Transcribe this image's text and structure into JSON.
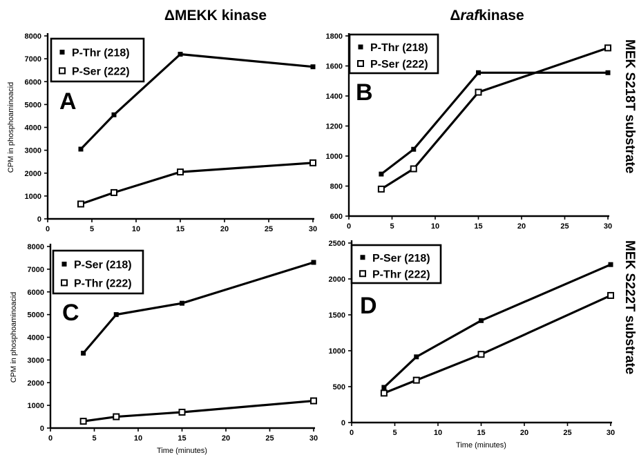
{
  "figure": {
    "column_titles": [
      {
        "prefix": "Δ",
        "main": "MEKK",
        "suffix": " kinase",
        "italic_main": false
      },
      {
        "prefix": "Δ",
        "main": "raf",
        "suffix": "kinase",
        "italic_main": true
      }
    ],
    "row_titles": [
      "MEK S218T substrate",
      "MEK S222T substrate"
    ]
  },
  "chart_data": [
    {
      "type": "line",
      "panel": "A",
      "ylabel": "CPM in phosphoaminoacid",
      "xlabel": "",
      "xlim": [
        0,
        30
      ],
      "ylim": [
        0,
        8000
      ],
      "xticks": [
        0,
        5,
        10,
        15,
        20,
        25,
        30
      ],
      "yticks": [
        0,
        1000,
        2000,
        3000,
        4000,
        5000,
        6000,
        7000,
        8000
      ],
      "legend_position": "top-left",
      "series": [
        {
          "name": "P-Thr (218)",
          "marker": "filled",
          "x": [
            3.75,
            7.5,
            15,
            30
          ],
          "y": [
            3050,
            4550,
            7200,
            6650
          ]
        },
        {
          "name": "P-Ser (222)",
          "marker": "open",
          "x": [
            3.75,
            7.5,
            15,
            30
          ],
          "y": [
            650,
            1150,
            2050,
            2450
          ]
        }
      ]
    },
    {
      "type": "line",
      "panel": "B",
      "ylabel": "",
      "xlabel": "",
      "xlim": [
        0,
        30
      ],
      "ylim": [
        600,
        1800
      ],
      "xticks": [
        0,
        5,
        10,
        15,
        20,
        25,
        30
      ],
      "yticks": [
        600,
        800,
        1000,
        1200,
        1400,
        1600,
        1800
      ],
      "legend_position": "top-left",
      "series": [
        {
          "name": "P-Thr (218)",
          "marker": "filled",
          "x": [
            3.75,
            7.5,
            15,
            30
          ],
          "y": [
            880,
            1045,
            1555,
            1555
          ]
        },
        {
          "name": "P-Ser (222)",
          "marker": "open",
          "x": [
            3.75,
            7.5,
            15,
            30
          ],
          "y": [
            780,
            915,
            1425,
            1720
          ]
        }
      ]
    },
    {
      "type": "line",
      "panel": "C",
      "ylabel": "CPM in phosphoaminoacid",
      "xlabel": "Time (minutes)",
      "xlim": [
        0,
        30
      ],
      "ylim": [
        0,
        8000
      ],
      "xticks": [
        0,
        5,
        10,
        15,
        20,
        25,
        30
      ],
      "yticks": [
        0,
        1000,
        2000,
        3000,
        4000,
        5000,
        6000,
        7000,
        8000
      ],
      "legend_position": "top-left",
      "series": [
        {
          "name": "P-Ser (218)",
          "marker": "filled",
          "x": [
            3.75,
            7.5,
            15,
            30
          ],
          "y": [
            3300,
            5000,
            5500,
            7300
          ]
        },
        {
          "name": "P-Thr (222)",
          "marker": "open",
          "x": [
            3.75,
            7.5,
            15,
            30
          ],
          "y": [
            300,
            500,
            700,
            1200
          ]
        }
      ]
    },
    {
      "type": "line",
      "panel": "D",
      "ylabel": "",
      "xlabel": "Time (minutes)",
      "xlim": [
        0,
        30
      ],
      "ylim": [
        0,
        2500
      ],
      "xticks": [
        0,
        5,
        10,
        15,
        20,
        25,
        30
      ],
      "yticks": [
        0,
        500,
        1000,
        1500,
        2000,
        2500
      ],
      "legend_position": "top-left",
      "series": [
        {
          "name": "P-Ser (218)",
          "marker": "filled",
          "x": [
            3.75,
            7.5,
            15,
            30
          ],
          "y": [
            490,
            915,
            1420,
            2200
          ]
        },
        {
          "name": "P-Thr (222)",
          "marker": "open",
          "x": [
            3.75,
            7.5,
            15,
            30
          ],
          "y": [
            410,
            590,
            950,
            1770
          ]
        }
      ]
    }
  ]
}
